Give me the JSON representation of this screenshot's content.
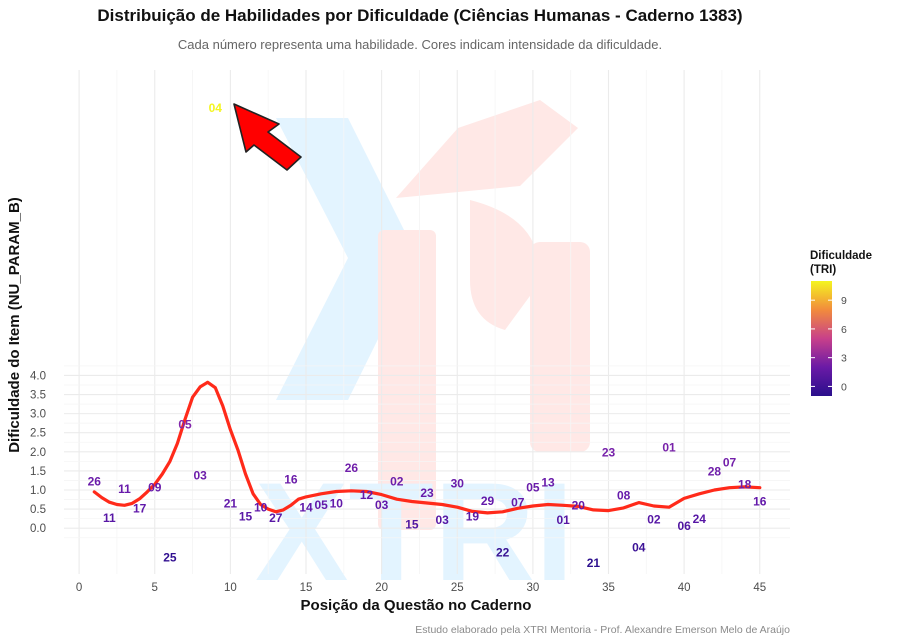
{
  "title": "Distribuição de Habilidades por Dificuldade (Ciências Humanas - Caderno 1383)",
  "subtitle": "Cada número representa uma habilidade. Cores indicam intensidade da dificuldade.",
  "caption": "Estudo elaborado pela XTRI Mentoria - Prof. Alexandre Emerson Melo de Araújo",
  "watermark_text": "XTRI",
  "colors": {
    "trend_line": "#ff2a1a",
    "arrow": "#ff0000",
    "watermark_blue": "#e3f4ff",
    "watermark_red": "#ffe8e6",
    "scale_low": "#2a0f8c",
    "scale_mid": "#c8408a",
    "scale_high": "#f4f520"
  },
  "chart_data": {
    "type": "scatter",
    "xlabel": "Posição da Questão no Caderno",
    "ylabel": "Dificuldade do Item (NU_PARAM_B)",
    "xlim": [
      -1,
      47
    ],
    "ylim": [
      -1.2,
      12
    ],
    "x_ticks": [
      0,
      5,
      10,
      15,
      20,
      25,
      30,
      35,
      40,
      45
    ],
    "y_ticks": [
      0.0,
      0.5,
      1.0,
      1.5,
      2.0,
      2.5,
      3.0,
      3.5,
      4.0
    ],
    "y_tick_labels": [
      "0.0",
      "0.5",
      "1.0",
      "1.5",
      "2.0",
      "2.5",
      "3.0",
      "3.5",
      "4.0"
    ],
    "grid": true,
    "color_scale": {
      "title": "Dificuldade (TRI)",
      "ticks": [
        0,
        3,
        6,
        9
      ],
      "range": [
        -1,
        11
      ]
    },
    "points": [
      {
        "x": 1,
        "y": 1.22,
        "label": "26"
      },
      {
        "x": 2,
        "y": 0.27,
        "label": "11"
      },
      {
        "x": 3,
        "y": 1.03,
        "label": "11"
      },
      {
        "x": 4,
        "y": 0.51,
        "label": "17"
      },
      {
        "x": 5,
        "y": 1.06,
        "label": "09"
      },
      {
        "x": 6,
        "y": -0.77,
        "label": "25"
      },
      {
        "x": 7,
        "y": 2.71,
        "label": "05"
      },
      {
        "x": 8,
        "y": 1.38,
        "label": "03"
      },
      {
        "x": 9,
        "y": 11.0,
        "label": "04"
      },
      {
        "x": 10,
        "y": 0.64,
        "label": "21"
      },
      {
        "x": 11,
        "y": 0.31,
        "label": "15"
      },
      {
        "x": 12,
        "y": 0.54,
        "label": "10"
      },
      {
        "x": 13,
        "y": 0.27,
        "label": "27"
      },
      {
        "x": 14,
        "y": 1.27,
        "label": "16"
      },
      {
        "x": 15,
        "y": 0.54,
        "label": "14"
      },
      {
        "x": 16,
        "y": 0.61,
        "label": "05"
      },
      {
        "x": 17,
        "y": 0.64,
        "label": "10"
      },
      {
        "x": 18,
        "y": 1.57,
        "label": "26"
      },
      {
        "x": 19,
        "y": 0.87,
        "label": "12"
      },
      {
        "x": 20,
        "y": 0.61,
        "label": "03"
      },
      {
        "x": 21,
        "y": 1.22,
        "label": "02"
      },
      {
        "x": 22,
        "y": 0.09,
        "label": "15"
      },
      {
        "x": 23,
        "y": 0.92,
        "label": "23"
      },
      {
        "x": 24,
        "y": 0.22,
        "label": "03"
      },
      {
        "x": 25,
        "y": 1.17,
        "label": "30"
      },
      {
        "x": 26,
        "y": 0.31,
        "label": "19"
      },
      {
        "x": 27,
        "y": 0.71,
        "label": "29"
      },
      {
        "x": 28,
        "y": -0.64,
        "label": "22"
      },
      {
        "x": 29,
        "y": 0.67,
        "label": "07"
      },
      {
        "x": 30,
        "y": 1.06,
        "label": "05"
      },
      {
        "x": 31,
        "y": 1.19,
        "label": "13"
      },
      {
        "x": 32,
        "y": 0.22,
        "label": "01"
      },
      {
        "x": 33,
        "y": 0.6,
        "label": "20"
      },
      {
        "x": 34,
        "y": -0.91,
        "label": "21"
      },
      {
        "x": 35,
        "y": 1.98,
        "label": "23"
      },
      {
        "x": 36,
        "y": 0.85,
        "label": "08"
      },
      {
        "x": 37,
        "y": -0.5,
        "label": "04"
      },
      {
        "x": 38,
        "y": 0.23,
        "label": "02"
      },
      {
        "x": 39,
        "y": 2.11,
        "label": "01"
      },
      {
        "x": 40,
        "y": 0.06,
        "label": "06"
      },
      {
        "x": 41,
        "y": 0.24,
        "label": "24"
      },
      {
        "x": 42,
        "y": 1.48,
        "label": "28"
      },
      {
        "x": 43,
        "y": 1.72,
        "label": "07"
      },
      {
        "x": 44,
        "y": 1.14,
        "label": "18"
      },
      {
        "x": 45,
        "y": 0.7,
        "label": "16"
      }
    ],
    "trend": {
      "x": [
        1,
        1.5,
        2,
        2.5,
        3,
        3.5,
        4,
        4.5,
        5,
        5.5,
        6,
        6.5,
        7,
        7.5,
        8,
        8.5,
        9,
        9.5,
        10,
        10.5,
        11,
        11.5,
        12,
        12.5,
        13,
        13.5,
        14,
        14.5,
        15,
        16,
        17,
        18,
        19,
        20,
        21,
        22,
        23,
        24,
        25,
        26,
        27,
        28,
        29,
        30,
        31,
        32,
        33,
        34,
        35,
        36,
        37,
        38,
        39,
        40,
        41,
        42,
        43,
        44,
        45
      ],
      "y": [
        0.95,
        0.8,
        0.68,
        0.62,
        0.6,
        0.65,
        0.77,
        0.95,
        1.15,
        1.42,
        1.75,
        2.22,
        2.85,
        3.43,
        3.7,
        3.82,
        3.68,
        3.2,
        2.58,
        2.05,
        1.42,
        0.9,
        0.62,
        0.5,
        0.43,
        0.48,
        0.6,
        0.76,
        0.82,
        0.9,
        0.96,
        0.98,
        0.96,
        0.88,
        0.76,
        0.7,
        0.66,
        0.62,
        0.55,
        0.44,
        0.4,
        0.43,
        0.52,
        0.58,
        0.62,
        0.6,
        0.57,
        0.48,
        0.46,
        0.53,
        0.67,
        0.58,
        0.55,
        0.78,
        0.9,
        1.0,
        1.06,
        1.08,
        1.06
      ]
    }
  }
}
